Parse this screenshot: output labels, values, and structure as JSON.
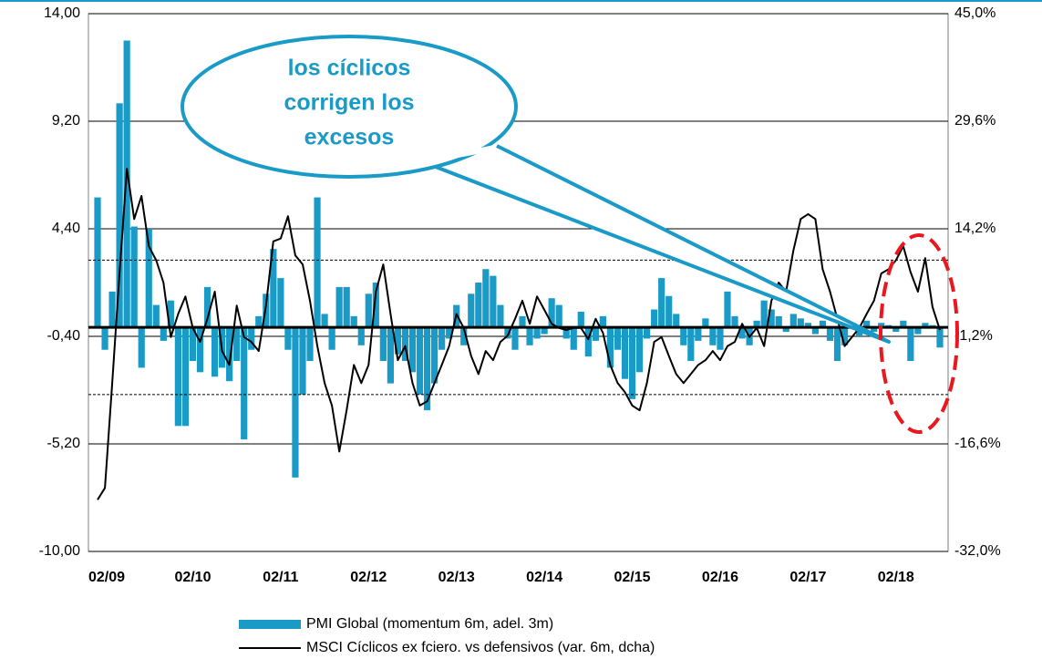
{
  "chart_data": {
    "type": "bar_line",
    "categories": [
      null,
      "02/09",
      null,
      null,
      null,
      null,
      null,
      null,
      null,
      null,
      null,
      null,
      null,
      "02/10",
      null,
      null,
      null,
      null,
      null,
      null,
      null,
      null,
      null,
      null,
      null,
      "02/11",
      null,
      null,
      null,
      null,
      null,
      null,
      null,
      null,
      null,
      null,
      null,
      "02/12",
      null,
      null,
      null,
      null,
      null,
      null,
      null,
      null,
      null,
      null,
      null,
      "02/13",
      null,
      null,
      null,
      null,
      null,
      null,
      null,
      null,
      null,
      null,
      null,
      "02/14",
      null,
      null,
      null,
      null,
      null,
      null,
      null,
      null,
      null,
      null,
      null,
      "02/15",
      null,
      null,
      null,
      null,
      null,
      null,
      null,
      null,
      null,
      null,
      null,
      "02/16",
      null,
      null,
      null,
      null,
      null,
      null,
      null,
      null,
      null,
      null,
      null,
      "02/17",
      null,
      null,
      null,
      null,
      null,
      null,
      null,
      null,
      null,
      null,
      null,
      "02/18",
      null,
      null,
      null,
      null,
      null,
      null
    ],
    "series": [
      {
        "name": "PMI Global (momentum 6m, adel. 3m)",
        "type": "bar",
        "color": "#1a9bc7",
        "axis": "y",
        "values": [
          5.8,
          -1.0,
          1.6,
          10.0,
          12.8,
          4.5,
          -1.8,
          4.4,
          1.0,
          -0.6,
          1.2,
          -4.4,
          -4.4,
          -1.5,
          -2.0,
          1.8,
          -2.2,
          -1.8,
          -2.4,
          -1.5,
          -5.0,
          -1.0,
          0.5,
          1.5,
          3.5,
          2.2,
          -1.0,
          -6.7,
          -3.0,
          -1.5,
          5.8,
          0.6,
          -1.0,
          1.8,
          1.8,
          0.5,
          -0.8,
          1.5,
          2.0,
          -1.5,
          -2.5,
          -1.2,
          -1.5,
          -2.0,
          -3.0,
          -3.7,
          -2.5,
          -1.0,
          -0.5,
          1.0,
          -0.8,
          1.5,
          2.0,
          2.6,
          2.3,
          1.0,
          -0.5,
          -1.0,
          0.5,
          -0.8,
          -0.5,
          -0.3,
          1.3,
          1.0,
          -0.5,
          -1.0,
          0.7,
          -1.3,
          -0.6,
          0.5,
          -1.8,
          -1.0,
          -2.3,
          -3.2,
          -2.0,
          -0.5,
          0.8,
          2.2,
          1.4,
          0.6,
          -0.8,
          -1.5,
          -0.6,
          0.4,
          -0.8,
          -1.0,
          1.6,
          0.5,
          -0.5,
          -0.8,
          0.3,
          1.2,
          0.8,
          0.5,
          -0.2,
          0.6,
          0.4,
          0.2,
          -0.3,
          0.3,
          -0.6,
          -1.5,
          -0.8,
          0.2,
          -0.4,
          0.3,
          -0.2,
          0.2,
          0.1,
          -0.2,
          0.3,
          -1.5,
          -0.3,
          0.2,
          0.1,
          -0.9
        ]
      },
      {
        "name": "MSCI Cíclicos ex fciero. vs defensivos (var. 6m, dcha)",
        "type": "line",
        "color": "#000000",
        "axis": "y2",
        "values": [
          -24.6,
          -22.9,
          -7.9,
          7.8,
          22.8,
          15.6,
          18.9,
          11.7,
          9.7,
          6.5,
          -1.3,
          2.0,
          4.5,
          0,
          -2.0,
          1.3,
          5.2,
          -3.3,
          -5.3,
          3.2,
          -1.3,
          -2.0,
          -3.3,
          3.2,
          12.4,
          12.8,
          16.0,
          10.4,
          9.1,
          3.9,
          -2.6,
          -7.9,
          -11.1,
          -17.7,
          -11.8,
          -5.3,
          -7.9,
          -5.3,
          5.2,
          9.1,
          2.0,
          -4.6,
          -2.6,
          -7.9,
          -11.1,
          -10.5,
          -7.9,
          -5.3,
          -2.6,
          2.0,
          0,
          -4.0,
          -6.6,
          -3.3,
          -4.6,
          -2.0,
          -1.1,
          1.3,
          3.9,
          0.6,
          4.5,
          2.6,
          0.6,
          0,
          -0.3,
          0,
          0,
          -1.6,
          1.3,
          -0.7,
          -5.3,
          -7.9,
          -9.2,
          -11.1,
          -11.8,
          -7.9,
          -2.0,
          -1.3,
          -4.0,
          -6.6,
          -7.9,
          -6.6,
          -5.3,
          -4.6,
          -3.3,
          -4.6,
          -2.6,
          -2.0,
          0.6,
          -1.3,
          0,
          -2.6,
          3.9,
          6.5,
          5.2,
          11.1,
          15.6,
          16.3,
          15.6,
          8.4,
          5.2,
          1.3,
          -2.6,
          -1.3,
          0,
          2.0,
          3.9,
          7.8,
          8.4,
          9.7,
          11.7,
          8.0,
          5.2,
          10.0,
          3.0,
          -0.3
        ]
      }
    ],
    "ylim": [
      -10,
      14
    ],
    "yticks": [
      {
        "value": -10,
        "label": "-10,00"
      },
      {
        "value": -5.2,
        "label": "-5,20"
      },
      {
        "value": -0.4,
        "label": "-0,40"
      },
      {
        "value": 4.4,
        "label": "4,40"
      },
      {
        "value": 9.2,
        "label": "9,20"
      },
      {
        "value": 14,
        "label": "14,00"
      }
    ],
    "y2lim": [
      -32,
      45
    ],
    "y2ticks": [
      {
        "value": -32,
        "label": "-32,0%"
      },
      {
        "value": -16.6,
        "label": "-16,6%"
      },
      {
        "value": -1.2,
        "label": "-1,2%"
      },
      {
        "value": 14.2,
        "label": "14,2%"
      },
      {
        "value": 29.6,
        "label": "29,6%"
      },
      {
        "value": 45,
        "label": "45,0%"
      }
    ],
    "grid": true,
    "reference_lines": [
      {
        "value": 3,
        "style": "dashed"
      },
      {
        "value": -3,
        "style": "dashed"
      },
      {
        "value": 0,
        "style": "solid"
      }
    ],
    "annotations": [
      {
        "lines": [
          "los cíclicos",
          "corrigen los",
          "excesos"
        ]
      }
    ],
    "legend": "bottom"
  }
}
